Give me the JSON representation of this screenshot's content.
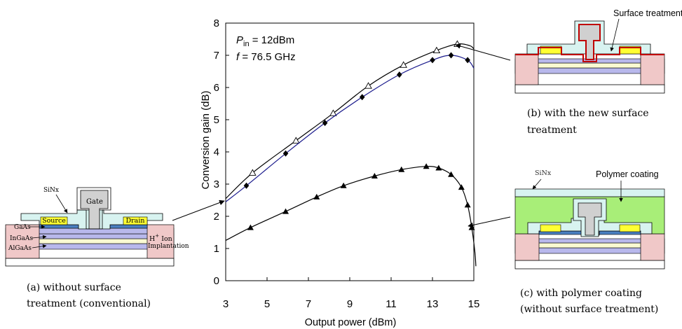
{
  "chart_data": {
    "type": "line",
    "xlabel": "Output power (dBm)",
    "ylabel": "Conversion gain (dB)",
    "xlim": [
      3,
      15
    ],
    "ylim": [
      0,
      8
    ],
    "xticks": [
      "3",
      "5",
      "7",
      "9",
      "11",
      "13",
      "15"
    ],
    "yticks": [
      "0",
      "1",
      "2",
      "3",
      "4",
      "5",
      "6",
      "7",
      "8"
    ],
    "annotation": {
      "pin_symbol": "P",
      "pin_sub": "in",
      "pin_value": " = 12dBm",
      "f_symbol": "f",
      "f_value": " = 76.5 GHz"
    },
    "series": [
      {
        "marker": "open-triangle",
        "color": "#000000",
        "x": [
          4.3,
          6.4,
          8.2,
          9.9,
          11.6,
          13.2,
          14.2
        ],
        "y": [
          3.35,
          4.35,
          5.2,
          6.05,
          6.7,
          7.15,
          7.35
        ],
        "curve_x": [
          3,
          4.3,
          6.4,
          8.2,
          9.9,
          11.6,
          13.2,
          14.2,
          14.8,
          15
        ],
        "curve_y": [
          2.55,
          3.35,
          4.35,
          5.2,
          6.05,
          6.7,
          7.15,
          7.35,
          7.3,
          7.2
        ]
      },
      {
        "marker": "filled-diamond",
        "color": "#1a1a8c",
        "x": [
          4.0,
          5.9,
          7.8,
          9.6,
          11.4,
          13.0,
          13.9,
          14.7
        ],
        "y": [
          2.95,
          3.95,
          4.9,
          5.7,
          6.4,
          6.85,
          7.0,
          6.85
        ],
        "curve_x": [
          3,
          4.0,
          5.9,
          7.8,
          9.6,
          11.4,
          13.0,
          13.9,
          14.7,
          15
        ],
        "curve_y": [
          2.45,
          2.95,
          3.95,
          4.9,
          5.7,
          6.4,
          6.85,
          7.0,
          6.85,
          6.6
        ]
      },
      {
        "marker": "filled-triangle",
        "color": "#000000",
        "x": [
          4.2,
          5.9,
          7.4,
          8.7,
          10.2,
          11.5,
          12.7,
          13.3,
          13.9,
          14.4,
          14.7,
          14.9
        ],
        "y": [
          1.65,
          2.15,
          2.6,
          2.95,
          3.25,
          3.45,
          3.55,
          3.5,
          3.3,
          2.9,
          2.35,
          1.65
        ],
        "curve_x": [
          3,
          4.2,
          5.9,
          7.4,
          8.7,
          10.2,
          11.5,
          12.7,
          13.3,
          13.9,
          14.4,
          14.7,
          14.9,
          15.05,
          15.1
        ],
        "curve_y": [
          1.25,
          1.65,
          2.15,
          2.6,
          2.95,
          3.25,
          3.45,
          3.55,
          3.5,
          3.3,
          2.9,
          2.35,
          1.65,
          0.9,
          0.45
        ]
      }
    ]
  },
  "diagram_a": {
    "label_gate": "Gate",
    "label_sinx": "SiNx",
    "label_source": "Source",
    "label_drain": "Drain",
    "label_gaas": "GaAs",
    "label_ingaas": "InGaAs",
    "label_algaas": "AlGaAs",
    "label_h_ion_1": "H",
    "label_h_ion_sup": "+",
    "label_h_ion_2": " Ion",
    "label_implant": "Implantation",
    "caption_line1": "(a) without surface",
    "caption_line2": "treatment (conventional)"
  },
  "diagram_b": {
    "label_surface": "Surface treatment",
    "caption_line1": "(b) with the new surface",
    "caption_line2": "treatment"
  },
  "diagram_c": {
    "label_sinx": "SiNx",
    "label_polymer": "Polymer coating",
    "caption_line1": "(c) with polymer coating",
    "caption_line2": "(without surface treatment)"
  },
  "colors": {
    "substrate": "#ffffff",
    "implant": "#f0c8c8",
    "layer_blue": "#b8b8ec",
    "layer_yellow": "#fafad2",
    "sinx": "#d8f3f0",
    "gate": "#d0d0d0",
    "contact": "#ffff33",
    "gaas_cap": "#4a7fc0",
    "polymer": "#a8ee78",
    "treatment": "#c00000"
  }
}
